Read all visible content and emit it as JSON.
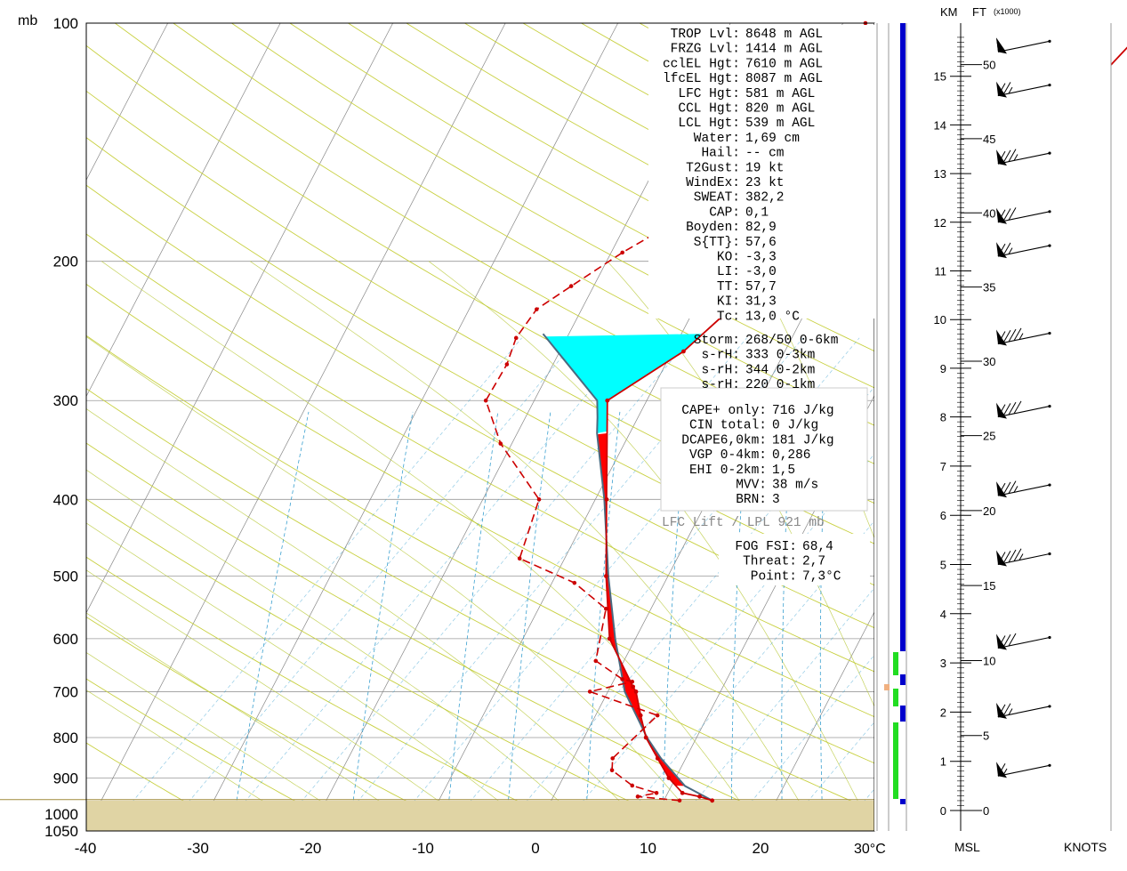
{
  "units": {
    "pressure": "mb",
    "temp": "30°C",
    "km": "KM",
    "ft": "FT",
    "ft_mult": "(x1000)",
    "msl": "MSL",
    "knots": "KNOTS"
  },
  "chart_data": {
    "type": "skew-t",
    "p_ticks": [
      100,
      200,
      300,
      400,
      500,
      600,
      700,
      800,
      900,
      1000,
      1050
    ],
    "t_ticks": [
      -40,
      -30,
      -20,
      -10,
      0,
      10,
      20
    ],
    "temperature": [
      [
        961,
        14.3
      ],
      [
        950,
        13.0
      ],
      [
        940,
        11.3
      ],
      [
        900,
        9.4
      ],
      [
        850,
        7.5
      ],
      [
        800,
        5.5
      ],
      [
        750,
        4.0
      ],
      [
        700,
        2.5
      ],
      [
        690,
        2.0
      ],
      [
        600,
        -2.3
      ],
      [
        500,
        -5.5
      ],
      [
        400,
        -9.0
      ],
      [
        300,
        -13.5
      ],
      [
        260,
        -9.0
      ],
      [
        235,
        -7.2
      ],
      [
        200,
        -2.0
      ],
      [
        175,
        5.5
      ],
      [
        160,
        8.5
      ],
      [
        140,
        13.0
      ],
      [
        100,
        17.3
      ]
    ],
    "dewpoint": [
      [
        961,
        11.4
      ],
      [
        950,
        7.5
      ],
      [
        940,
        9.0
      ],
      [
        920,
        6.5
      ],
      [
        880,
        4.0
      ],
      [
        850,
        3.5
      ],
      [
        750,
        5.5
      ],
      [
        700,
        -1.6
      ],
      [
        680,
        1.7
      ],
      [
        675,
        0.7
      ],
      [
        640,
        -2.5
      ],
      [
        550,
        -4.0
      ],
      [
        510,
        -8.0
      ],
      [
        475,
        -14.0
      ],
      [
        400,
        -15.0
      ],
      [
        340,
        -21.0
      ],
      [
        300,
        -24.3
      ],
      [
        270,
        -24.1
      ],
      [
        250,
        -24.5
      ],
      [
        230,
        -24.0
      ],
      [
        215,
        -22.0
      ],
      [
        195,
        -19.0
      ],
      [
        175,
        -15.0
      ],
      [
        160,
        -12.5
      ],
      [
        135,
        -9.0
      ],
      [
        100,
        -8.0
      ]
    ],
    "parcel_path": [
      [
        961,
        14.3
      ],
      [
        921,
        11.2
      ],
      [
        850,
        7.8
      ],
      [
        800,
        5.6
      ],
      [
        700,
        1.5
      ],
      [
        600,
        -1.8
      ],
      [
        500,
        -5.3
      ],
      [
        400,
        -9.2
      ],
      [
        330,
        -12.9
      ],
      [
        315,
        -13.6
      ],
      [
        300,
        -14.4
      ],
      [
        247,
        -22.3
      ]
    ],
    "wind_barbs": [
      {
        "km": 15.5,
        "speed": 50
      },
      {
        "km": 14.6,
        "speed": 25
      },
      {
        "km": 13.2,
        "speed": 35
      },
      {
        "km": 12.0,
        "speed": 30
      },
      {
        "km": 11.3,
        "speed": 25
      },
      {
        "km": 9.5,
        "speed": 45
      },
      {
        "km": 8.0,
        "speed": 40
      },
      {
        "km": 6.4,
        "speed": 35
      },
      {
        "km": 5.0,
        "speed": 45
      },
      {
        "km": 3.3,
        "speed": 30
      },
      {
        "km": 1.9,
        "speed": 25
      },
      {
        "km": 0.7,
        "speed": 15
      }
    ],
    "km_ticks": [
      0,
      1,
      2,
      3,
      4,
      5,
      6,
      7,
      8,
      9,
      10,
      11,
      12,
      13,
      14,
      15
    ],
    "ft_ticks": [
      0,
      5,
      10,
      15,
      20,
      25,
      30,
      35,
      40,
      45,
      50
    ]
  },
  "indices": [
    {
      "label": "TROP Lvl:",
      "value": "8648 m AGL"
    },
    {
      "label": "FRZG Lvl:",
      "value": "1414 m AGL"
    },
    {
      "label": "cclEL Hgt:",
      "value": "7610 m AGL"
    },
    {
      "label": "lfcEL Hgt:",
      "value": "8087 m AGL"
    },
    {
      "label": "LFC Hgt:",
      "value": " 581 m AGL"
    },
    {
      "label": "CCL Hgt:",
      "value": " 820 m AGL"
    },
    {
      "label": "LCL Hgt:",
      "value": " 539 m AGL"
    },
    {
      "label": "Water:",
      "value": "1,69 cm"
    },
    {
      "label": "Hail:",
      "value": "  -- cm"
    },
    {
      "label": "T2Gust:",
      "value": "  19 kt"
    },
    {
      "label": "WindEx:",
      "value": "  23 kt"
    },
    {
      "label": "SWEAT:",
      "value": "382,2"
    },
    {
      "label": "CAP:",
      "value": "  0,1"
    },
    {
      "label": "Boyden:",
      "value": " 82,9"
    },
    {
      "label": "S{TT}:",
      "value": " 57,6"
    },
    {
      "label": "KO:",
      "value": " -3,3"
    },
    {
      "label": "LI:",
      "value": " -3,0"
    },
    {
      "label": "TT:",
      "value": " 57,7"
    },
    {
      "label": "KI:",
      "value": " 31,3"
    },
    {
      "label": "Tc:",
      "value": " 13,0 °C"
    }
  ],
  "storm": [
    {
      "label": "Storm:",
      "value": "268/50 0-6km"
    },
    {
      "label": "s-rH:",
      "value": "  333  0-3km"
    },
    {
      "label": "s-rH:",
      "value": "  344  0-2km"
    },
    {
      "label": "s-rH:",
      "value": "  220  0-1km"
    }
  ],
  "cape": [
    {
      "label": "CAPE+ only:",
      "value": "  716 J/kg"
    },
    {
      "label": "CIN total:",
      "value": "    0 J/kg"
    },
    {
      "label": "DCAPE6,0km:",
      "value": "  181 J/kg"
    },
    {
      "label": "VGP 0-4km:",
      "value": "  0,286"
    },
    {
      "label": "EHI 0-2km:",
      "value": "  1,5"
    },
    {
      "label": "MVV:",
      "value": "   38 m/s"
    },
    {
      "label": "BRN:",
      "value": "    3"
    }
  ],
  "lift_note": "LFC Lift / LPL 921 mb",
  "fog": [
    {
      "label": "FOG FSI:",
      "value": "68,4"
    },
    {
      "label": "Threat:",
      "value": " 2,7"
    },
    {
      "label": "Point:",
      "value": " 7,3°C"
    }
  ],
  "colors": {
    "temp": "#cc0000",
    "cape": "#ff0000",
    "cin": "#00ffff",
    "dry": "#c8d040",
    "moist": "#c8d040",
    "mix": "#3aa0d0",
    "ground": "#e0d4a4",
    "column_blue": "#0000cc",
    "column_green": "#22dd22"
  }
}
